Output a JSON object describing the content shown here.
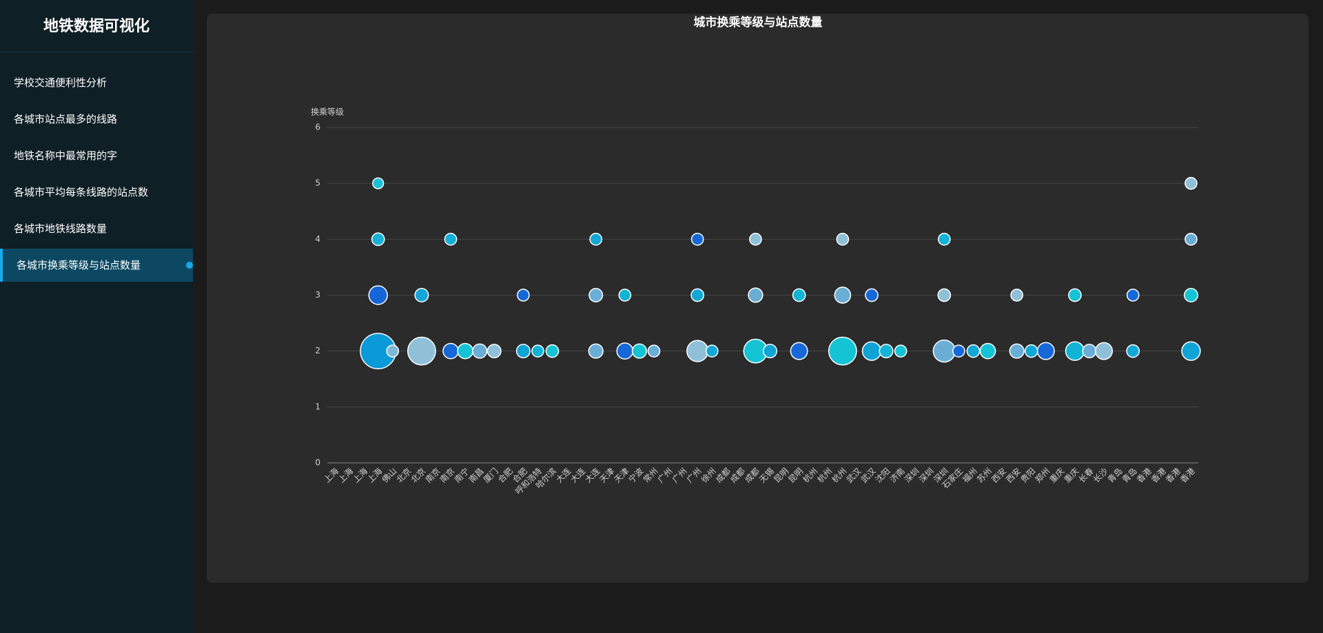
{
  "sidebar": {
    "title": "地铁数据可视化",
    "menu": [
      "学校交通便利性分析",
      "各城市站点最多的线路",
      "地铁名称中最常用的字",
      "各城市平均每条线路的站点数",
      "各城市地铁线路数量",
      "各城市换乘等级与站点数量"
    ],
    "active_index": 5
  },
  "chart_data": {
    "type": "scatter",
    "title": "城市换乘等级与站点数量",
    "y_label": "换乘等级",
    "categories": [
      "上海",
      "上海",
      "上海",
      "上海",
      "佛山",
      "北京",
      "北京",
      "南京",
      "南京",
      "南宁",
      "南昌",
      "厦门",
      "合肥",
      "合肥",
      "呼和浩特",
      "哈尔滨",
      "大连",
      "大连",
      "大连",
      "天津",
      "天津",
      "宁波",
      "常州",
      "广州",
      "广州",
      "广州",
      "徐州",
      "成都",
      "成都",
      "成都",
      "无锡",
      "昆明",
      "昆明",
      "杭州",
      "杭州",
      "杭州",
      "武汉",
      "武汉",
      "沈阳",
      "济南",
      "深圳",
      "深圳",
      "深圳",
      "石家庄",
      "福州",
      "苏州",
      "西安",
      "西安",
      "贵阳",
      "郑州",
      "重庆",
      "重庆",
      "长春",
      "长沙",
      "青岛",
      "青岛",
      "香港",
      "香港",
      "香港",
      "香港"
    ],
    "series": [
      {
        "values": [
          5,
          4,
          3,
          2,
          2,
          3,
          2,
          4,
          2,
          2,
          2,
          2,
          3,
          2,
          2,
          2,
          4,
          3,
          2,
          3,
          2,
          2,
          2,
          4,
          3,
          2,
          2,
          4,
          3,
          2,
          2,
          3,
          2,
          4,
          3,
          2,
          3,
          2,
          2,
          2,
          4,
          3,
          2,
          2,
          2,
          2,
          3,
          2,
          2,
          2,
          3,
          2,
          2,
          2,
          3,
          2,
          5,
          4,
          3,
          2
        ],
        "sizes": [
          20,
          27,
          59,
          216,
          24,
          31,
          133,
          24,
          40,
          40,
          35,
          31,
          24,
          31,
          24,
          27,
          24,
          31,
          35,
          24,
          44,
          35,
          24,
          24,
          27,
          77,
          24,
          24,
          35,
          96,
          31,
          27,
          49,
          24,
          44,
          133,
          27,
          59,
          31,
          24,
          24,
          27,
          83,
          24,
          27,
          40,
          24,
          35,
          27,
          49,
          27,
          59,
          31,
          49,
          24,
          27,
          24,
          24,
          31,
          59
        ],
        "colors": [
          "#17c0d4",
          "#1ab0d8",
          "#1565d8",
          "#0a9ad8",
          "#7fb8d8",
          "#13a6d6",
          "#8fc0d8",
          "#14aed6",
          "#1668d8",
          "#14c4d4",
          "#6aaed6",
          "#8fc0d8",
          "#1668d8",
          "#10a4d6",
          "#12b4d6",
          "#14c4d4",
          "#12a8d6",
          "#6aaed6",
          "#6aaed6",
          "#12b4d6",
          "#1668d8",
          "#14c4d4",
          "#6aaed6",
          "#1668d8",
          "#12a8d6",
          "#8fc0d8",
          "#12a8d6",
          "#8fc0d8",
          "#6aaed6",
          "#14c4d4",
          "#10a4d6",
          "#12b4d6",
          "#1668d8",
          "#8fc0d8",
          "#6aaed6",
          "#14c4d4",
          "#1668d8",
          "#10a4d6",
          "#12b4d6",
          "#14c4d4",
          "#12b4d6",
          "#8fc0d8",
          "#6aaed6",
          "#1668d8",
          "#12a8d6",
          "#14c4d4",
          "#8fc0d8",
          "#6aaed6",
          "#12a8d6",
          "#1668d8",
          "#14c4d4",
          "#12b4d6",
          "#6aaed6",
          "#8fc0d8",
          "#1668d8",
          "#12a8d6",
          "#8fc0d8",
          "#6aaed6",
          "#14c4d4",
          "#10a4d6"
        ]
      }
    ],
    "ylim": [
      0,
      6
    ],
    "yticks": [
      0,
      1,
      2,
      3,
      4,
      5,
      6
    ],
    "grid": true
  }
}
